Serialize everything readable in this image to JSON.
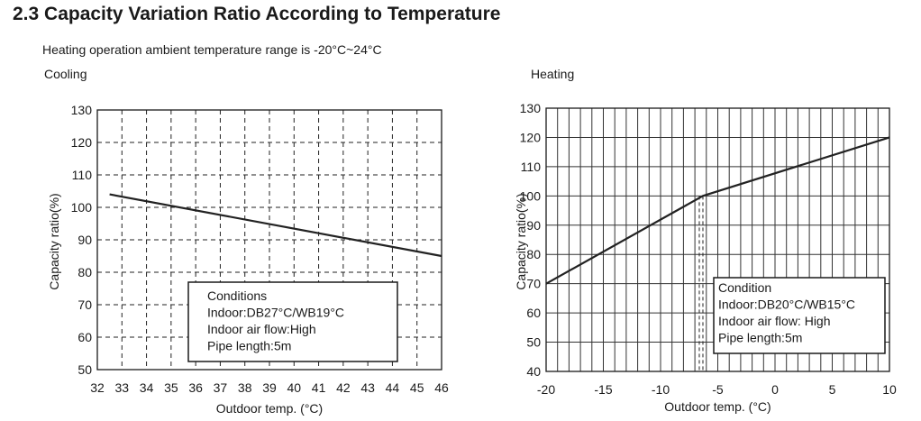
{
  "page": {
    "title": "2.3 Capacity Variation Ratio According to Temperature",
    "subtitle": "Heating operation ambient temperature range is -20°C~24°C"
  },
  "chart_data": [
    {
      "type": "line",
      "title": "Cooling",
      "xlabel": "Outdoor temp. (°C)",
      "ylabel": "Capacity ratio(%)",
      "xlim": [
        32,
        46
      ],
      "ylim": [
        50,
        130
      ],
      "xticks": [
        32,
        33,
        34,
        35,
        36,
        37,
        38,
        39,
        40,
        41,
        42,
        43,
        44,
        45,
        46
      ],
      "yticks": [
        50,
        60,
        70,
        80,
        90,
        100,
        110,
        120,
        130
      ],
      "grid": "dashed",
      "series": [
        {
          "x": [
            32.5,
            46
          ],
          "y": [
            104,
            85
          ]
        }
      ],
      "conditions": [
        "Conditions",
        "Indoor:DB27°C/WB19°C",
        "Indoor air flow:High",
        "Pipe length:5m"
      ]
    },
    {
      "type": "line",
      "title": "Heating",
      "xlabel": "Outdoor temp. (°C)",
      "ylabel": "Capacity ratio(%)",
      "xlim": [
        -20,
        10
      ],
      "ylim": [
        40,
        130
      ],
      "xticks": [
        -20,
        -15,
        -10,
        -5,
        0,
        5,
        10
      ],
      "yticks": [
        40,
        50,
        60,
        70,
        80,
        90,
        100,
        110,
        120,
        130
      ],
      "grid": "solid",
      "series": [
        {
          "x": [
            -20,
            -6.3,
            10
          ],
          "y": [
            70,
            100,
            120
          ]
        }
      ],
      "conditions": [
        "Condition",
        "Indoor:DB20°C/WB15°C",
        "Indoor air flow: High",
        "Pipe length:5m"
      ]
    }
  ]
}
